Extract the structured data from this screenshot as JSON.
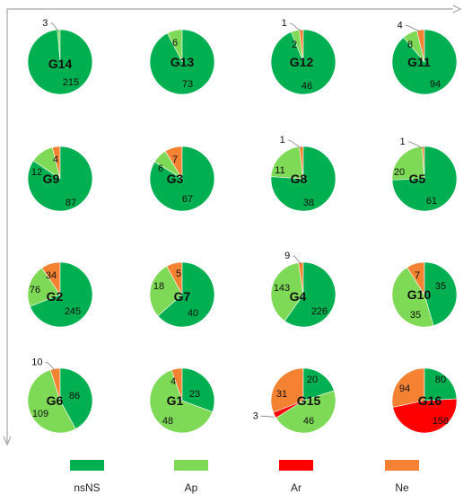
{
  "chart_data": {
    "type": "pie",
    "categories": [
      "nsNS",
      "Ap",
      "Ar",
      "Ne"
    ],
    "colors": {
      "nsNS": "#00b050",
      "Ap": "#7ed957",
      "Ar": "#ff0000",
      "Ne": "#f58233"
    },
    "legend_placement": "bottom",
    "axes": "arrow-top-and-left",
    "pies": [
      {
        "name": "G14",
        "values": [
          215,
          3,
          0,
          0
        ]
      },
      {
        "name": "G13",
        "values": [
          73,
          6,
          0,
          0
        ]
      },
      {
        "name": "G12",
        "values": [
          46,
          2,
          0,
          1
        ]
      },
      {
        "name": "G11",
        "values": [
          94,
          8,
          0,
          4
        ]
      },
      {
        "name": "G9",
        "values": [
          87,
          12,
          0,
          4
        ]
      },
      {
        "name": "G3",
        "values": [
          67,
          6,
          0,
          7
        ]
      },
      {
        "name": "G8",
        "values": [
          38,
          11,
          0,
          1
        ]
      },
      {
        "name": "G5",
        "values": [
          61,
          20,
          0,
          1
        ]
      },
      {
        "name": "G2",
        "values": [
          245,
          76,
          0,
          34
        ]
      },
      {
        "name": "G7",
        "values": [
          40,
          18,
          0,
          5
        ]
      },
      {
        "name": "G4",
        "values": [
          226,
          143,
          0,
          9
        ]
      },
      {
        "name": "G10",
        "values": [
          35,
          35,
          0,
          7
        ]
      },
      {
        "name": "G6",
        "values": [
          86,
          109,
          0,
          10
        ]
      },
      {
        "name": "G1",
        "values": [
          23,
          48,
          0,
          4
        ]
      },
      {
        "name": "G15",
        "values": [
          20,
          46,
          3,
          31
        ]
      },
      {
        "name": "G16",
        "values": [
          80,
          0,
          158,
          94
        ]
      }
    ]
  }
}
